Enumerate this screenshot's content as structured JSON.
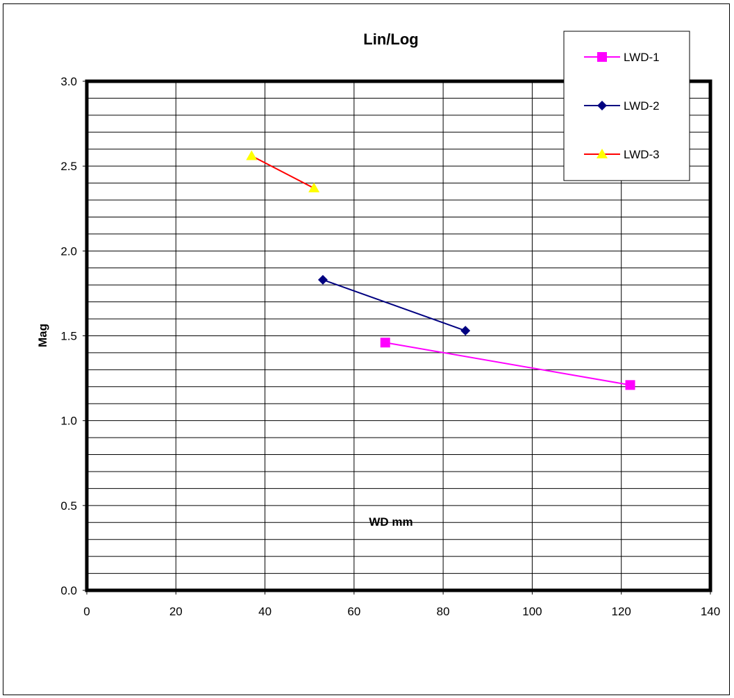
{
  "chart_data": {
    "type": "line",
    "title": "Lin/Log",
    "xlabel": "WD mm",
    "ylabel": "Mag",
    "xlim": [
      0,
      140
    ],
    "ylim": [
      0,
      3.0
    ],
    "x_ticks": [
      "0",
      "20",
      "40",
      "60",
      "80",
      "100",
      "120",
      "140"
    ],
    "y_ticks": [
      "0.0",
      "0.5",
      "1.0",
      "1.5",
      "2.0",
      "2.5",
      "3.0"
    ],
    "grid": true,
    "legend_position": "top-right",
    "series": [
      {
        "name": "LWD-1",
        "color": "#ff00ff",
        "marker": "square",
        "points": [
          {
            "x": 67,
            "y": 1.46
          },
          {
            "x": 122,
            "y": 1.21
          }
        ]
      },
      {
        "name": "LWD-2",
        "color": "#000080",
        "marker": "diamond",
        "points": [
          {
            "x": 53,
            "y": 1.83
          },
          {
            "x": 85,
            "y": 1.53
          }
        ]
      },
      {
        "name": "LWD-3",
        "color": "#ff0000",
        "marker_color": "#ffff00",
        "marker": "triangle",
        "points": [
          {
            "x": 37,
            "y": 2.56
          },
          {
            "x": 51,
            "y": 2.37
          }
        ]
      }
    ]
  }
}
